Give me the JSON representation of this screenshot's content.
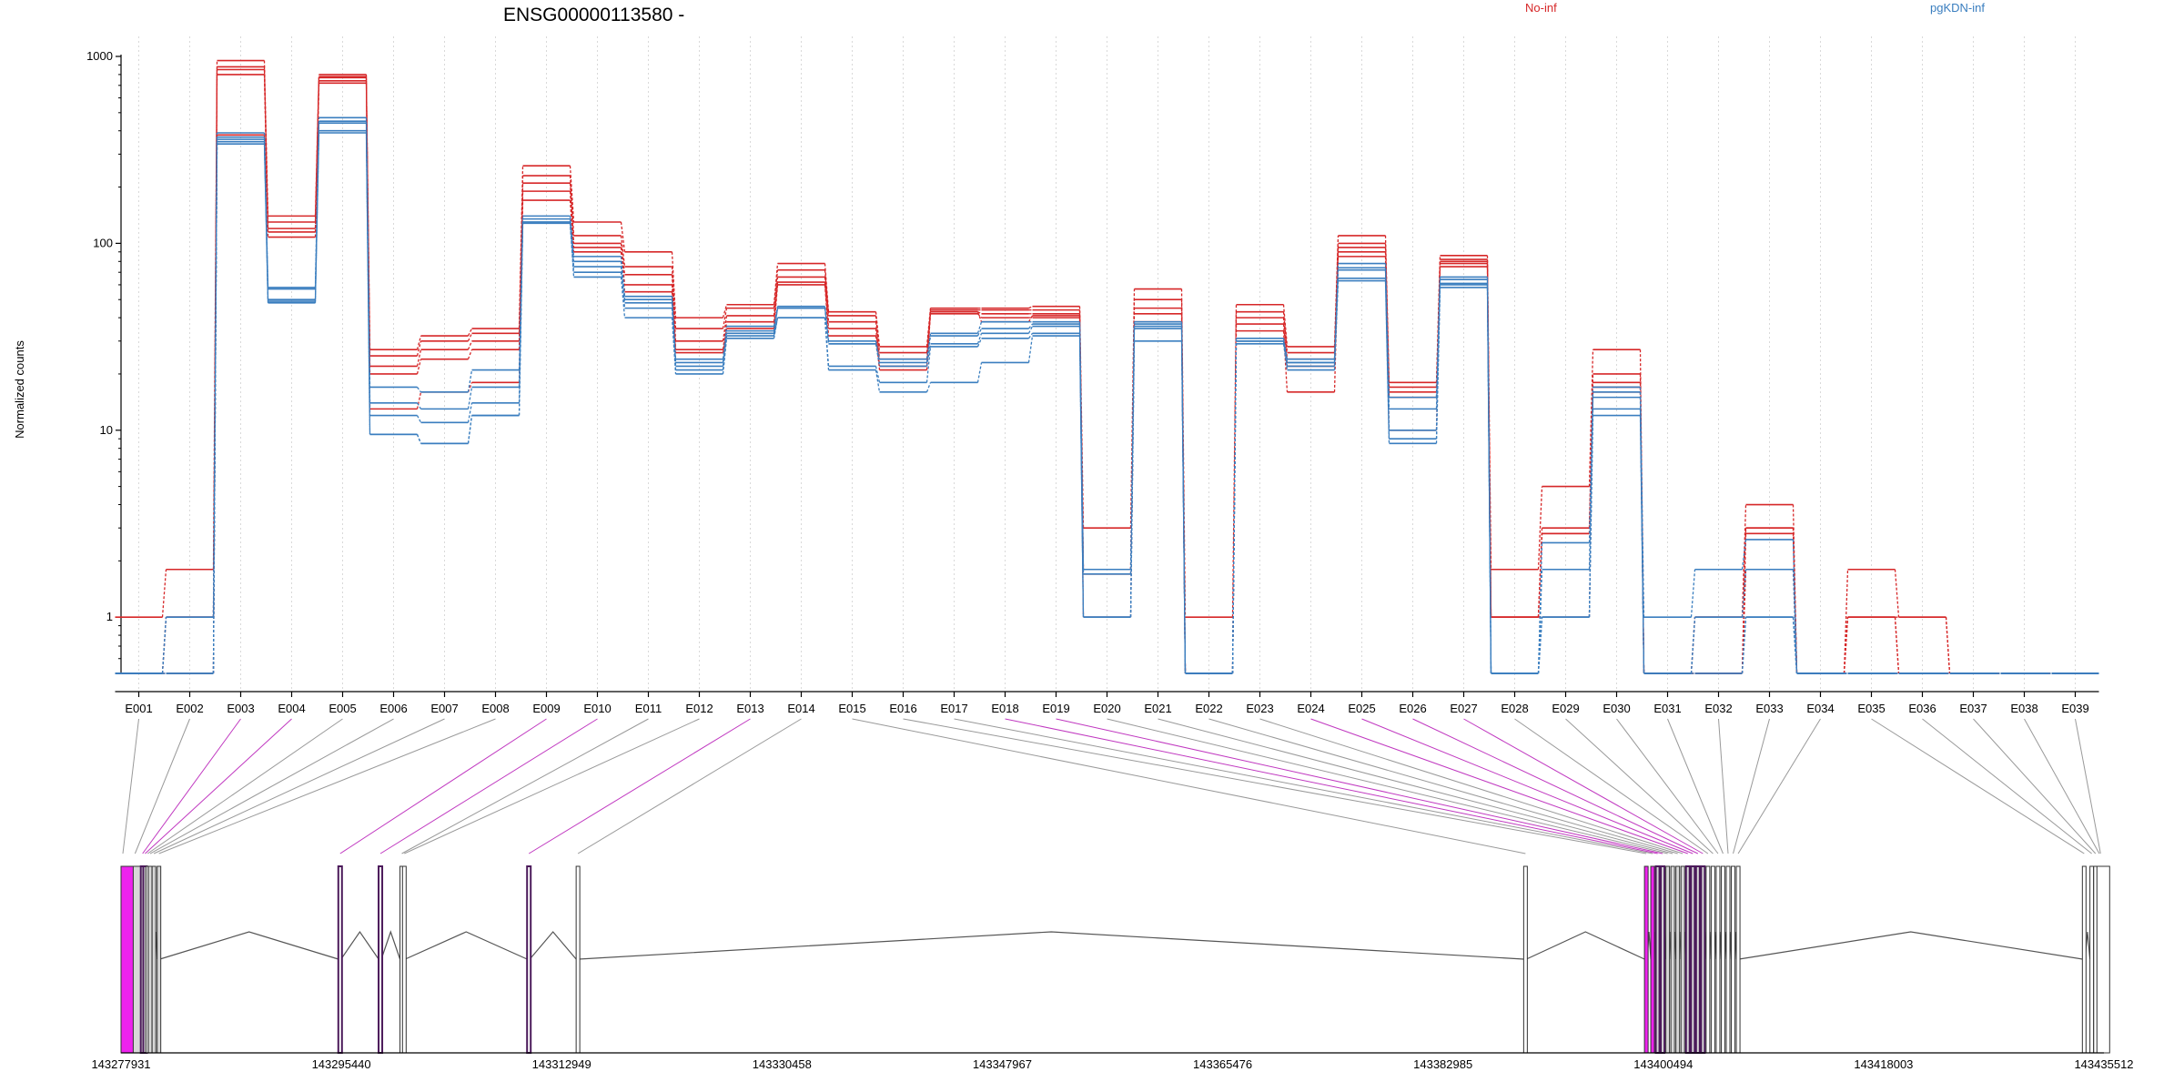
{
  "chart_data": {
    "type": "line",
    "title": "ENSG00000113580 -",
    "ylabel": "Normalized counts",
    "yscale": "log",
    "ylim": [
      0.5,
      1000
    ],
    "yticks": [
      "1000",
      "100",
      "10",
      "1"
    ],
    "yticks_values": [
      1000,
      100,
      10,
      1
    ],
    "grid": "vertical dotted lines at exon centers",
    "legend_placement": "top",
    "colors": {
      "no_inf": "#d62728",
      "pgkdn_inf": "#3a7ebf",
      "diff_link": "#c038c0",
      "link": "#999999",
      "highlight_exon": "#ee22ee",
      "grey_exon": "#d8d8d8"
    },
    "categories": [
      "E001",
      "E002",
      "E003",
      "E004",
      "E005",
      "E006",
      "E007",
      "E008",
      "E009",
      "E010",
      "E011",
      "E012",
      "E013",
      "E014",
      "E015",
      "E016",
      "E017",
      "E018",
      "E019",
      "E020",
      "E021",
      "E022",
      "E023",
      "E024",
      "E025",
      "E026",
      "E027",
      "E028",
      "E029",
      "E030",
      "E031",
      "E032",
      "E033",
      "E034",
      "E035",
      "E036",
      "E037",
      "E038",
      "E039"
    ],
    "series": [
      {
        "name": "No-inf",
        "group": "red",
        "values": [
          1,
          1.8,
          950,
          140,
          800,
          27,
          32,
          35,
          260,
          130,
          90,
          40,
          47,
          78,
          43,
          28,
          45,
          45,
          46,
          3,
          57,
          1,
          47,
          28,
          110,
          18,
          86,
          1.8,
          5,
          27,
          0.5,
          1,
          4,
          0.5,
          1.8,
          1,
          0.5,
          0.5,
          0.5
        ]
      },
      {
        "name": "",
        "group": "red",
        "values": [
          0.5,
          1,
          880,
          120,
          770,
          25,
          30,
          33,
          230,
          110,
          75,
          35,
          45,
          72,
          41,
          26,
          44,
          44,
          44,
          1.8,
          50,
          0.5,
          43,
          26,
          100,
          17,
          82,
          1,
          3,
          20,
          0.5,
          1,
          3,
          0.5,
          1,
          1,
          0.5,
          0.5,
          0.5
        ]
      },
      {
        "name": "",
        "group": "red",
        "values": [
          0.5,
          1,
          850,
          115,
          740,
          22,
          27,
          30,
          210,
          100,
          68,
          30,
          41,
          66,
          38,
          24,
          43,
          42,
          42,
          1.7,
          45,
          0.5,
          40,
          24,
          95,
          16,
          80,
          1,
          2.8,
          18,
          0.5,
          0.5,
          3,
          0.5,
          1,
          0.5,
          0.5,
          0.5,
          0.5
        ]
      },
      {
        "name": "",
        "group": "red",
        "values": [
          0.5,
          0.5,
          800,
          108,
          720,
          20,
          24,
          27,
          190,
          95,
          60,
          27,
          38,
          62,
          35,
          22,
          42,
          40,
          40,
          1.8,
          42,
          0.5,
          37,
          22,
          90,
          15,
          78,
          1,
          2.8,
          17,
          0.5,
          0.5,
          2.8,
          0.5,
          1,
          0.5,
          0.5,
          0.5,
          0.5
        ]
      },
      {
        "name": "",
        "group": "red",
        "values": [
          0.5,
          0.5,
          380,
          130,
          780,
          13,
          16,
          18,
          170,
          90,
          55,
          26,
          35,
          60,
          32,
          21,
          43,
          38,
          41,
          1,
          38,
          0.5,
          34,
          16,
          85,
          10,
          75,
          1,
          1,
          16,
          0.5,
          0.5,
          1.8,
          0.5,
          0.5,
          0.5,
          0.5,
          0.5,
          0.5
        ]
      },
      {
        "name": "pgKDN-inf",
        "group": "blue",
        "values": [
          0.5,
          1,
          390,
          58,
          470,
          17,
          16,
          21,
          140,
          85,
          52,
          24,
          36,
          46,
          30,
          24,
          33,
          38,
          38,
          1.8,
          38,
          0.5,
          31,
          24,
          78,
          15,
          66,
          0.5,
          2.5,
          17,
          1,
          1.8,
          2.6,
          0.5,
          0.5,
          0.5,
          0.5,
          0.5,
          0.5
        ]
      },
      {
        "name": "",
        "group": "blue",
        "values": [
          0.5,
          0.5,
          360,
          57,
          450,
          14,
          13,
          17,
          135,
          80,
          50,
          23,
          34,
          45,
          29,
          23,
          32,
          35,
          37,
          1.7,
          37,
          0.5,
          30,
          23,
          74,
          13,
          64,
          0.5,
          1.8,
          16,
          0.5,
          1,
          1.8,
          0.5,
          0.5,
          0.5,
          0.5,
          0.5,
          0.5
        ]
      },
      {
        "name": "",
        "group": "blue",
        "values": [
          0.5,
          1,
          370,
          48,
          440,
          12,
          11,
          14,
          130,
          75,
          48,
          22,
          33,
          45,
          29,
          22,
          29,
          33,
          36,
          1,
          36,
          0.5,
          30,
          23,
          72,
          10,
          61,
          0.5,
          1,
          15,
          0.5,
          1,
          1,
          0.5,
          0.5,
          0.5,
          0.5,
          0.5,
          0.5
        ]
      },
      {
        "name": "",
        "group": "blue",
        "values": [
          0.5,
          0.5,
          350,
          50,
          400,
          9.5,
          8.5,
          12,
          130,
          70,
          45,
          21,
          32,
          40,
          22,
          18,
          28,
          31,
          33,
          1,
          35,
          0.5,
          30,
          22,
          65,
          9,
          60,
          0.5,
          1,
          13,
          0.5,
          0.5,
          1,
          0.5,
          0.5,
          0.5,
          0.5,
          0.5,
          0.5
        ]
      },
      {
        "name": "",
        "group": "blue",
        "values": [
          0.5,
          0.5,
          340,
          49,
          390,
          9.5,
          8.5,
          12,
          128,
          66,
          40,
          20,
          31,
          40,
          21,
          16,
          18,
          23,
          32,
          1,
          30,
          0.5,
          29,
          21,
          63,
          8.5,
          58,
          0.5,
          1,
          12,
          0.5,
          0.5,
          1,
          0.5,
          0.5,
          0.5,
          0.5,
          0.5,
          0.5
        ]
      }
    ],
    "genomic_ticks": [
      "143277931",
      "143295440",
      "143312949",
      "143330458",
      "143347967",
      "143365476",
      "143382985",
      "143400494",
      "143418003",
      "143435512"
    ],
    "genomic_tick_values": [
      143277931,
      143295440,
      143312949,
      143330458,
      143347967,
      143365476,
      143382985,
      143400494,
      143418003,
      143435512
    ],
    "exon_start_coords": [
      143277931,
      143278900,
      143279500,
      143279700,
      143279900,
      143280100,
      143280400,
      143280800,
      143295200,
      143298400,
      143300100,
      143300300,
      143310200,
      143314100,
      143389400,
      143399000,
      143399500,
      143399900,
      143400300,
      143400700,
      143401100,
      143401500,
      143401900,
      143402300,
      143402700,
      143403100,
      143403500,
      143403900,
      143404300,
      143404700,
      143405100,
      143405500,
      143405900,
      143406300,
      143433800,
      143434400,
      143434700,
      143435000,
      143435100
    ],
    "diff_exons": [
      "E003",
      "E004",
      "E009",
      "E010",
      "E013",
      "E018",
      "E019",
      "E024",
      "E025",
      "E026",
      "E027"
    ]
  }
}
